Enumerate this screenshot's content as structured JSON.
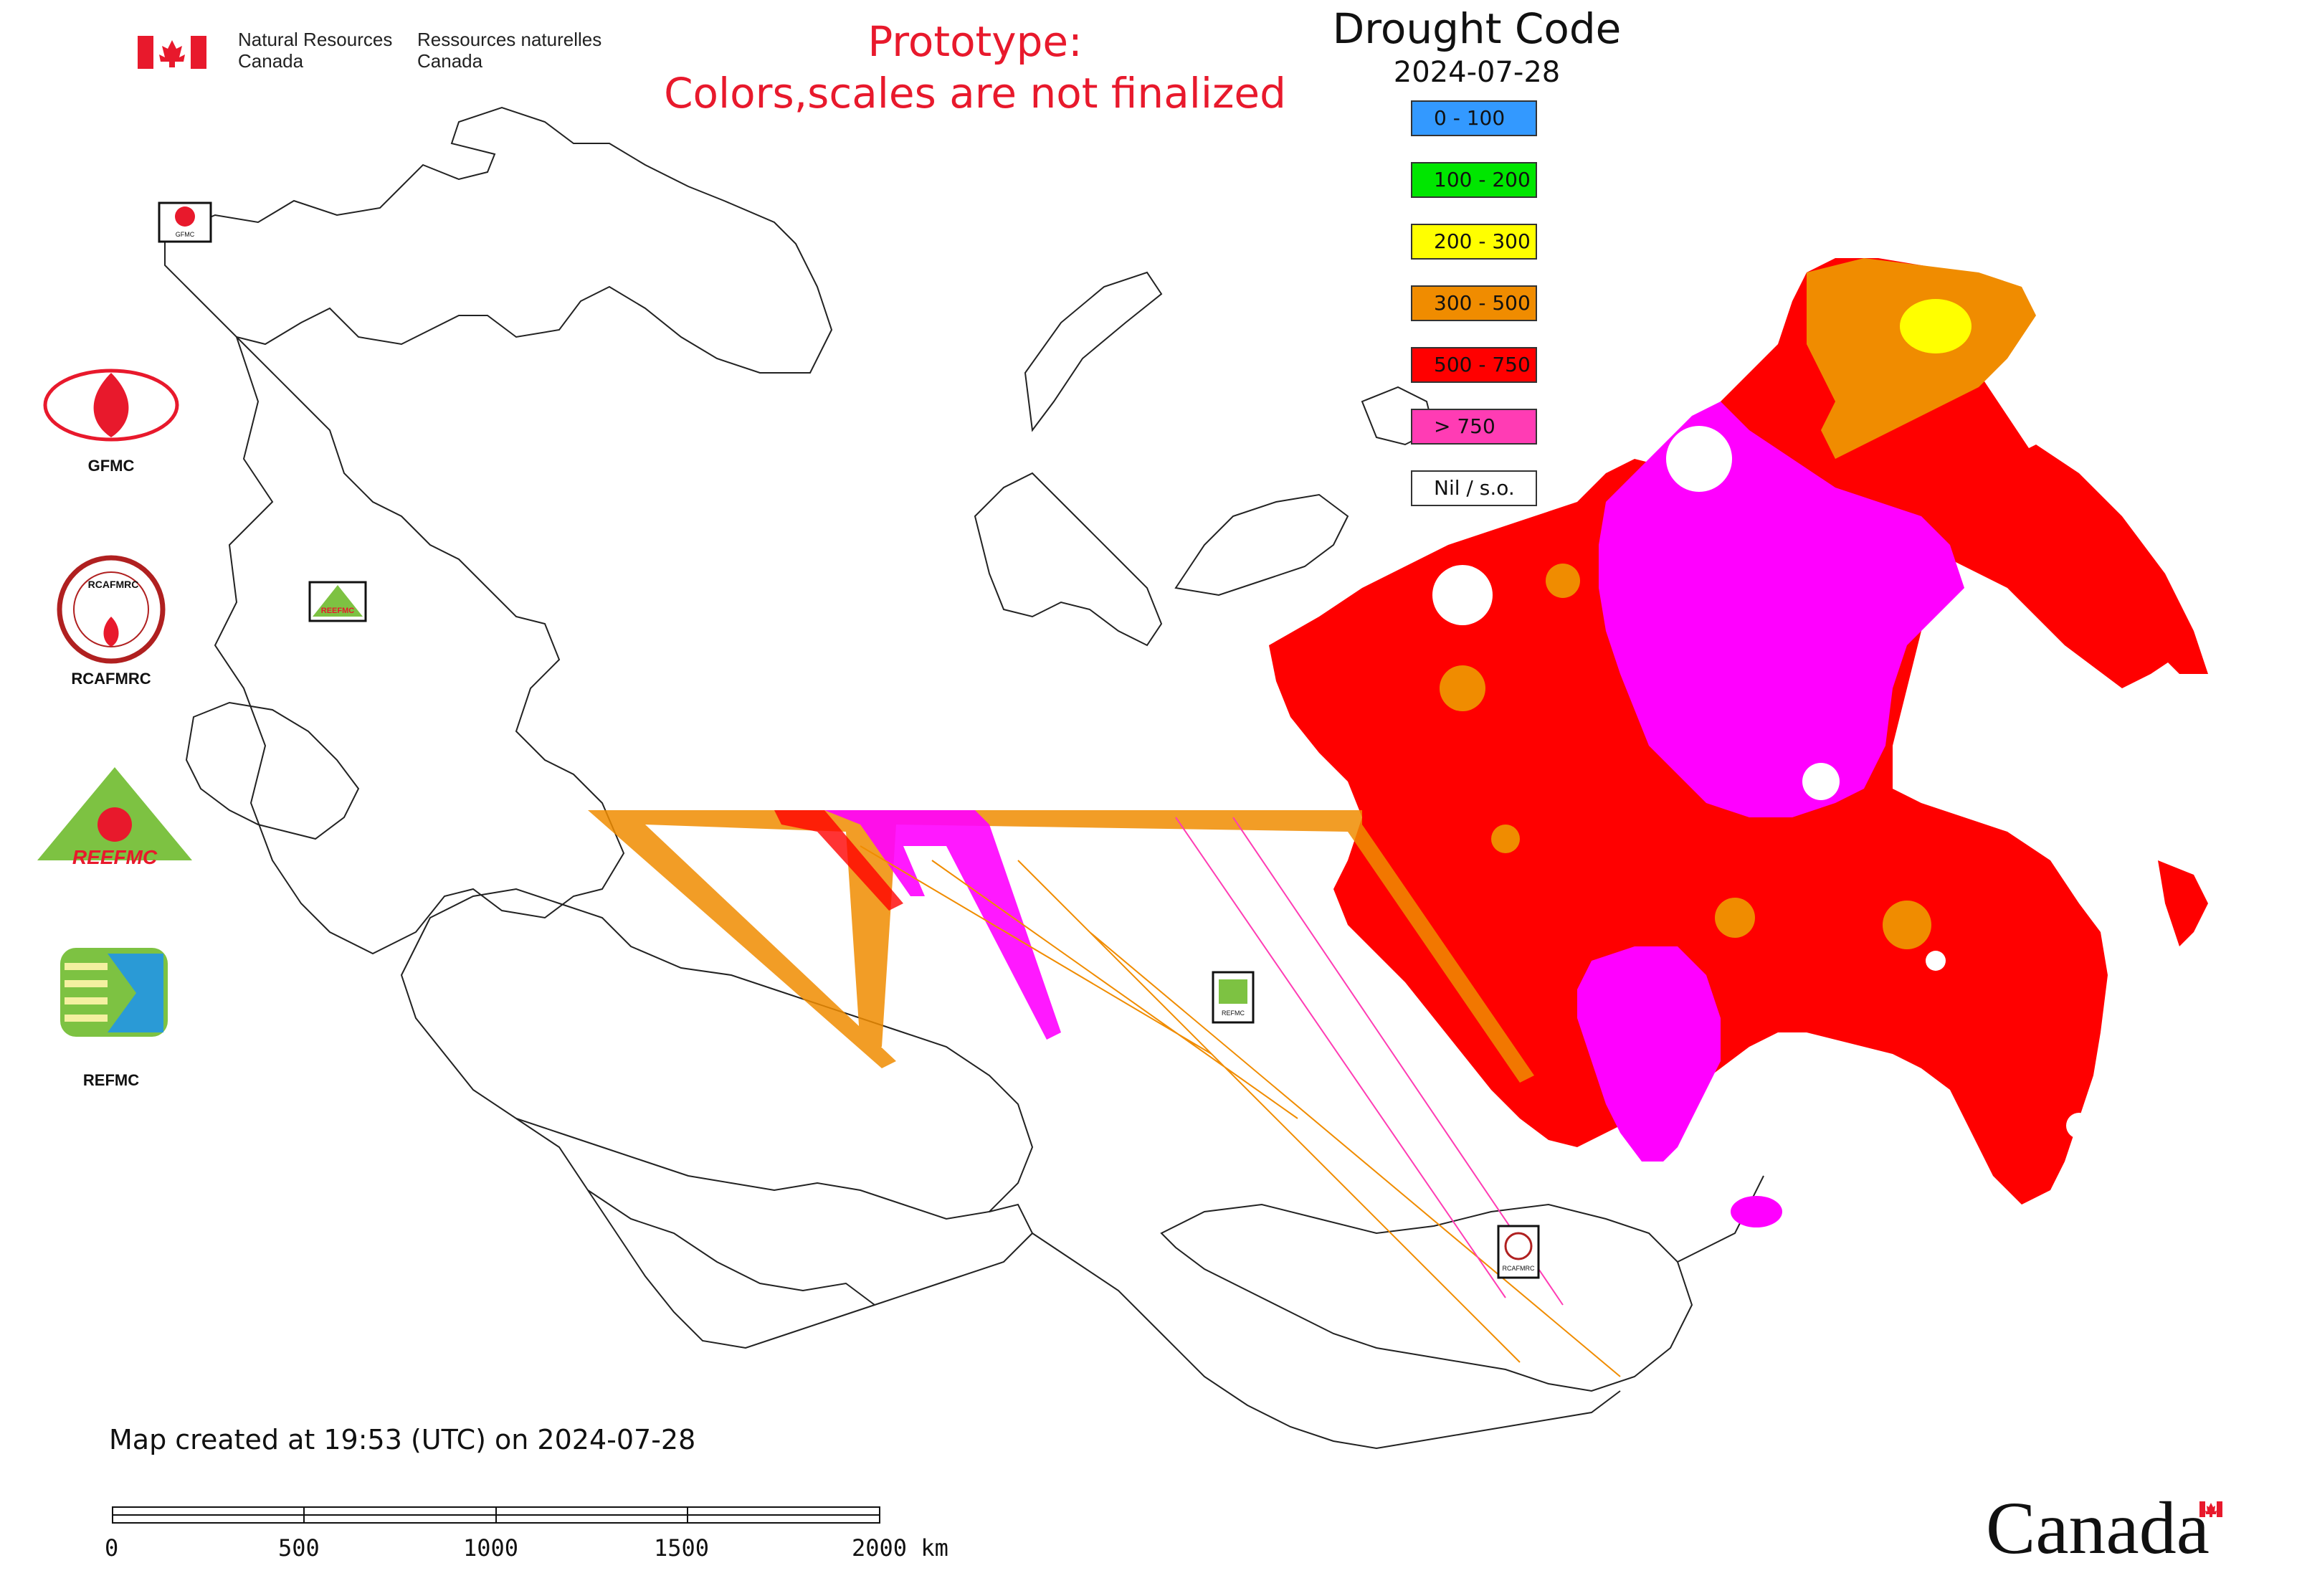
{
  "header": {
    "department_en_line1": "Natural Resources",
    "department_en_line2": "Canada",
    "department_fr_line1": "Ressources naturelles",
    "department_fr_line2": "Canada",
    "prototype_line1": "Prototype:",
    "prototype_line2": "Colors,scales are not finalized"
  },
  "map": {
    "title": "Drought Code",
    "date": "2024-07-28",
    "created_note": "Map created at 19:53 (UTC) on 2024-07-28"
  },
  "legend": [
    {
      "label": "0 - 100",
      "color": "#3399ff"
    },
    {
      "label": "100 - 200",
      "color": "#00e600"
    },
    {
      "label": "200 - 300",
      "color": "#ffff00"
    },
    {
      "label": "300 - 500",
      "color": "#f08c00"
    },
    {
      "label": "500 - 750",
      "color": "#ff0000"
    },
    {
      "label": "> 750",
      "color": "#ff3cb4"
    },
    {
      "label": "Nil / s.o.",
      "color": "#ffffff"
    }
  ],
  "colors": {
    "prototype_text": "#e8192c",
    "canada_flag_red": "#e8192c",
    "magenta_area": "#ff00ff",
    "orange_area": "#f08c00",
    "red_area": "#ff0000",
    "yellow_area": "#ffff00",
    "gfmc_red": "#e8192c",
    "reefmc_green": "#7dc242",
    "refmc_green": "#7dc242"
  },
  "logos": {
    "gfmc": "GFMC",
    "rcafmrc": "RCAFMRC",
    "reefmc": "REEFMC",
    "refmc": "REFMC",
    "rcafmrc_badge_text": "RCAFMRC",
    "reefmc_wordmark": "REEFMC",
    "gfmc_small": "GFMC",
    "refmc_small": "REFMC",
    "rcafmrc_small": "RCAFMRC"
  },
  "scale_bar": {
    "ticks": [
      "0",
      "500",
      "1000",
      "1500",
      "2000 km"
    ]
  },
  "footer": {
    "wordmark": "Canada"
  }
}
